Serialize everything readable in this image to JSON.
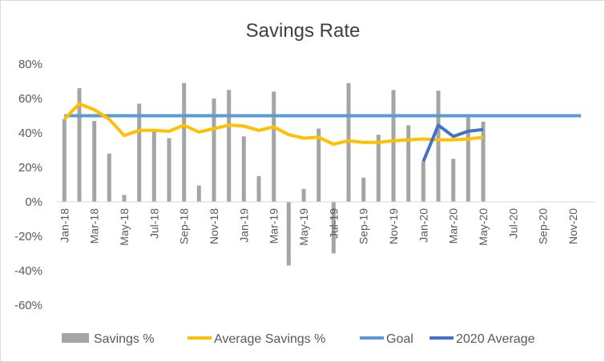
{
  "chart_data": {
    "type": "bar",
    "title": "Savings Rate",
    "xlabel": "",
    "ylabel": "",
    "ylim": [
      -0.6,
      0.8
    ],
    "yticks": [
      0.8,
      0.6,
      0.4,
      0.2,
      0.0,
      -0.2,
      -0.4,
      -0.6
    ],
    "ytick_labels": [
      "80%",
      "60%",
      "40%",
      "20%",
      "0%",
      "-20%",
      "-40%",
      "-60%"
    ],
    "grid": false,
    "legend_position": "bottom",
    "categories": [
      "Jan-18",
      "Feb-18",
      "Mar-18",
      "Apr-18",
      "May-18",
      "Jun-18",
      "Jul-18",
      "Aug-18",
      "Sep-18",
      "Oct-18",
      "Nov-18",
      "Dec-18",
      "Jan-19",
      "Feb-19",
      "Mar-19",
      "Apr-19",
      "May-19",
      "Jun-19",
      "Jul-19",
      "Aug-19",
      "Sep-19",
      "Oct-19",
      "Nov-19",
      "Dec-19",
      "Jan-20",
      "Feb-20",
      "Mar-20",
      "Apr-20",
      "May-20",
      "Jun-20",
      "Jul-20",
      "Aug-20",
      "Sep-20",
      "Oct-20",
      "Nov-20",
      "Dec-20"
    ],
    "x_tick_labels": [
      "Jan-18",
      "Mar-18",
      "May-18",
      "Jul-18",
      "Sep-18",
      "Nov-18",
      "Jan-19",
      "Mar-19",
      "May-19",
      "Jul-19",
      "Sep-19",
      "Nov-19",
      "Jan-20",
      "Mar-20",
      "May-20",
      "Jul-20",
      "Sep-20",
      "Nov-20"
    ],
    "series": [
      {
        "name": "Savings %",
        "kind": "bar",
        "color": "#a5a5a5",
        "values": [
          0.48,
          0.66,
          0.47,
          0.28,
          0.04,
          0.57,
          0.41,
          0.37,
          0.69,
          0.095,
          0.6,
          0.65,
          0.38,
          0.15,
          0.64,
          -0.37,
          0.075,
          0.425,
          -0.3,
          0.69,
          0.14,
          0.39,
          0.65,
          0.445,
          0.235,
          0.645,
          0.25,
          0.495,
          0.465,
          null,
          null,
          null,
          null,
          null,
          null,
          null
        ]
      },
      {
        "name": "Average Savings %",
        "kind": "line",
        "color": "#ffc000",
        "values": [
          0.48,
          0.57,
          0.535,
          0.48,
          0.385,
          0.415,
          0.415,
          0.41,
          0.445,
          0.405,
          0.425,
          0.445,
          0.44,
          0.415,
          0.435,
          0.39,
          0.37,
          0.375,
          0.335,
          0.355,
          0.345,
          0.345,
          0.355,
          0.36,
          0.365,
          0.36,
          0.36,
          0.365,
          0.375,
          null,
          null,
          null,
          null,
          null,
          null,
          null
        ]
      },
      {
        "name": "Goal",
        "kind": "line",
        "color": "#5b9bd5",
        "values": [
          0.5,
          0.5,
          0.5,
          0.5,
          0.5,
          0.5,
          0.5,
          0.5,
          0.5,
          0.5,
          0.5,
          0.5,
          0.5,
          0.5,
          0.5,
          0.5,
          0.5,
          0.5,
          0.5,
          0.5,
          0.5,
          0.5,
          0.5,
          0.5,
          0.5,
          0.5,
          0.5,
          0.5,
          0.5,
          0.5,
          0.5,
          0.5,
          0.5,
          0.5,
          0.5,
          0.5
        ]
      },
      {
        "name": "2020 Average",
        "kind": "line",
        "color": "#4472c4",
        "values": [
          null,
          null,
          null,
          null,
          null,
          null,
          null,
          null,
          null,
          null,
          null,
          null,
          null,
          null,
          null,
          null,
          null,
          null,
          null,
          null,
          null,
          null,
          null,
          null,
          0.235,
          0.445,
          0.38,
          0.41,
          0.42,
          null,
          null,
          null,
          null,
          null,
          null,
          null
        ]
      }
    ]
  }
}
